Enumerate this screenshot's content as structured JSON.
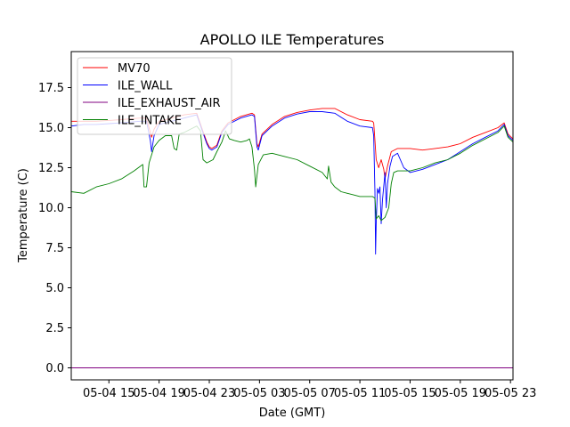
{
  "chart_data": {
    "type": "line",
    "title": "APOLLO ILE Temperatures",
    "xlabel": "Date (GMT)",
    "ylabel": "Temperature (C)",
    "x_unit": "hours since 05-04 12:00 GMT",
    "xlim": [
      0,
      35.2
    ],
    "ylim": [
      -0.75,
      19.75
    ],
    "x_ticks": [
      {
        "value": 3,
        "label": "05-04 15"
      },
      {
        "value": 7,
        "label": "05-04 19"
      },
      {
        "value": 11,
        "label": "05-04 23"
      },
      {
        "value": 15,
        "label": "05-05 03"
      },
      {
        "value": 19,
        "label": "05-05 07"
      },
      {
        "value": 23,
        "label": "05-05 11"
      },
      {
        "value": 27,
        "label": "05-05 15"
      },
      {
        "value": 31,
        "label": "05-05 19"
      },
      {
        "value": 35,
        "label": "05-05 23"
      }
    ],
    "y_ticks": [
      {
        "value": 0.0,
        "label": "0.0"
      },
      {
        "value": 2.5,
        "label": "2.5"
      },
      {
        "value": 5.0,
        "label": "5.0"
      },
      {
        "value": 7.5,
        "label": "7.5"
      },
      {
        "value": 10.0,
        "label": "10.0"
      },
      {
        "value": 12.5,
        "label": "12.5"
      },
      {
        "value": 15.0,
        "label": "15.0"
      },
      {
        "value": 17.5,
        "label": "17.5"
      }
    ],
    "legend_position": "top-left",
    "series": [
      {
        "name": "MV70",
        "color": "#ff0000",
        "points": [
          [
            0,
            15.4
          ],
          [
            2,
            15.4
          ],
          [
            4,
            15.5
          ],
          [
            5.5,
            15.6
          ],
          [
            6,
            15.6
          ],
          [
            6.4,
            14.4
          ],
          [
            6.6,
            14.9
          ],
          [
            7,
            15.4
          ],
          [
            8,
            15.6
          ],
          [
            9,
            15.8
          ],
          [
            10,
            15.9
          ],
          [
            10.4,
            15.0
          ],
          [
            10.8,
            14.1
          ],
          [
            11,
            13.8
          ],
          [
            11.2,
            13.7
          ],
          [
            11.6,
            13.9
          ],
          [
            12,
            14.8
          ],
          [
            12.5,
            15.3
          ],
          [
            13.5,
            15.7
          ],
          [
            14.4,
            15.9
          ],
          [
            14.6,
            15.8
          ],
          [
            14.8,
            14.0
          ],
          [
            14.9,
            13.8
          ],
          [
            15.2,
            14.6
          ],
          [
            16,
            15.2
          ],
          [
            17,
            15.7
          ],
          [
            18,
            15.95
          ],
          [
            19,
            16.1
          ],
          [
            20,
            16.2
          ],
          [
            21,
            16.2
          ],
          [
            22,
            15.8
          ],
          [
            23,
            15.5
          ],
          [
            24,
            15.4
          ],
          [
            24.1,
            15.3
          ],
          [
            24.2,
            14.2
          ],
          [
            24.3,
            13.0
          ],
          [
            24.5,
            12.5
          ],
          [
            24.7,
            13.0
          ],
          [
            24.9,
            12.4
          ],
          [
            25.0,
            11.8
          ],
          [
            25.2,
            12.6
          ],
          [
            25.5,
            13.5
          ],
          [
            26,
            13.7
          ],
          [
            27,
            13.7
          ],
          [
            28,
            13.6
          ],
          [
            29,
            13.7
          ],
          [
            30,
            13.8
          ],
          [
            31,
            14.0
          ],
          [
            32,
            14.4
          ],
          [
            33,
            14.7
          ],
          [
            34,
            15.0
          ],
          [
            34.5,
            15.3
          ],
          [
            34.8,
            14.6
          ],
          [
            35.2,
            14.3
          ]
        ]
      },
      {
        "name": "ILE_WALL",
        "color": "#0000ff",
        "points": [
          [
            0,
            15.1
          ],
          [
            1,
            15.2
          ],
          [
            2,
            15.2
          ],
          [
            4,
            15.3
          ],
          [
            5.5,
            15.4
          ],
          [
            6,
            15.4
          ],
          [
            6.3,
            14.2
          ],
          [
            6.4,
            13.5
          ],
          [
            6.6,
            14.5
          ],
          [
            7,
            15.2
          ],
          [
            8,
            15.4
          ],
          [
            9,
            15.6
          ],
          [
            10,
            15.8
          ],
          [
            10.4,
            14.9
          ],
          [
            10.8,
            14.0
          ],
          [
            11,
            13.7
          ],
          [
            11.2,
            13.6
          ],
          [
            11.6,
            13.8
          ],
          [
            12,
            14.7
          ],
          [
            12.5,
            15.2
          ],
          [
            13.5,
            15.6
          ],
          [
            14.4,
            15.8
          ],
          [
            14.6,
            15.7
          ],
          [
            14.8,
            13.8
          ],
          [
            14.9,
            13.6
          ],
          [
            15.2,
            14.5
          ],
          [
            16,
            15.1
          ],
          [
            17,
            15.6
          ],
          [
            18,
            15.85
          ],
          [
            19,
            16.0
          ],
          [
            20,
            16.0
          ],
          [
            21,
            15.9
          ],
          [
            22,
            15.4
          ],
          [
            23,
            15.1
          ],
          [
            24,
            15.0
          ],
          [
            24.1,
            14.5
          ],
          [
            24.2,
            11.0
          ],
          [
            24.25,
            7.1
          ],
          [
            24.3,
            9.0
          ],
          [
            24.4,
            11.2
          ],
          [
            24.5,
            10.9
          ],
          [
            24.6,
            11.3
          ],
          [
            24.7,
            9.0
          ],
          [
            24.8,
            10.5
          ],
          [
            25.0,
            12.2
          ],
          [
            25.1,
            10.0
          ],
          [
            25.2,
            11.5
          ],
          [
            25.4,
            12.6
          ],
          [
            25.6,
            13.2
          ],
          [
            26,
            13.4
          ],
          [
            26.5,
            12.5
          ],
          [
            27,
            12.2
          ],
          [
            28,
            12.4
          ],
          [
            29,
            12.7
          ],
          [
            30,
            13.0
          ],
          [
            31,
            13.5
          ],
          [
            32,
            14.0
          ],
          [
            33,
            14.4
          ],
          [
            34,
            14.8
          ],
          [
            34.5,
            15.2
          ],
          [
            34.8,
            14.5
          ],
          [
            35.2,
            14.2
          ]
        ]
      },
      {
        "name": "ILE_EXHAUST_AIR",
        "color": "#800080",
        "points": [
          [
            0,
            0.0
          ],
          [
            35.2,
            0.0
          ]
        ]
      },
      {
        "name": "ILE_INTAKE",
        "color": "#008000",
        "points": [
          [
            0,
            11.0
          ],
          [
            1,
            10.9
          ],
          [
            2,
            11.3
          ],
          [
            3,
            11.5
          ],
          [
            4,
            11.8
          ],
          [
            5,
            12.3
          ],
          [
            5.7,
            12.7
          ],
          [
            5.8,
            11.3
          ],
          [
            6.0,
            11.3
          ],
          [
            6.2,
            12.8
          ],
          [
            6.6,
            13.8
          ],
          [
            7,
            14.2
          ],
          [
            7.5,
            14.5
          ],
          [
            8,
            14.5
          ],
          [
            8.2,
            13.7
          ],
          [
            8.4,
            13.6
          ],
          [
            8.6,
            14.6
          ],
          [
            9,
            14.7
          ],
          [
            10,
            15.1
          ],
          [
            10.3,
            14.8
          ],
          [
            10.5,
            13.0
          ],
          [
            10.8,
            12.8
          ],
          [
            11.3,
            13.0
          ],
          [
            11.6,
            13.5
          ],
          [
            12,
            14.1
          ],
          [
            12.3,
            14.8
          ],
          [
            12.6,
            14.3
          ],
          [
            13,
            14.2
          ],
          [
            13.5,
            14.1
          ],
          [
            14,
            14.2
          ],
          [
            14.2,
            14.3
          ],
          [
            14.4,
            13.8
          ],
          [
            14.6,
            12.4
          ],
          [
            14.7,
            11.3
          ],
          [
            14.9,
            12.7
          ],
          [
            15.3,
            13.3
          ],
          [
            16,
            13.4
          ],
          [
            17,
            13.2
          ],
          [
            18,
            13.0
          ],
          [
            19,
            12.6
          ],
          [
            20,
            12.2
          ],
          [
            20.4,
            11.8
          ],
          [
            20.5,
            12.6
          ],
          [
            20.7,
            11.6
          ],
          [
            21,
            11.3
          ],
          [
            21.5,
            11.0
          ],
          [
            22,
            10.9
          ],
          [
            22.5,
            10.8
          ],
          [
            23,
            10.7
          ],
          [
            24,
            10.7
          ],
          [
            24.2,
            10.6
          ],
          [
            24.3,
            9.3
          ],
          [
            24.5,
            9.5
          ],
          [
            24.7,
            9.2
          ],
          [
            25,
            9.4
          ],
          [
            25.3,
            10.0
          ],
          [
            25.5,
            11.5
          ],
          [
            25.7,
            12.2
          ],
          [
            26,
            12.3
          ],
          [
            27,
            12.3
          ],
          [
            28,
            12.5
          ],
          [
            29,
            12.8
          ],
          [
            30,
            13.0
          ],
          [
            31,
            13.4
          ],
          [
            32,
            13.9
          ],
          [
            33,
            14.3
          ],
          [
            34,
            14.7
          ],
          [
            34.5,
            15.1
          ],
          [
            34.8,
            14.4
          ],
          [
            35.2,
            14.1
          ]
        ]
      }
    ]
  }
}
